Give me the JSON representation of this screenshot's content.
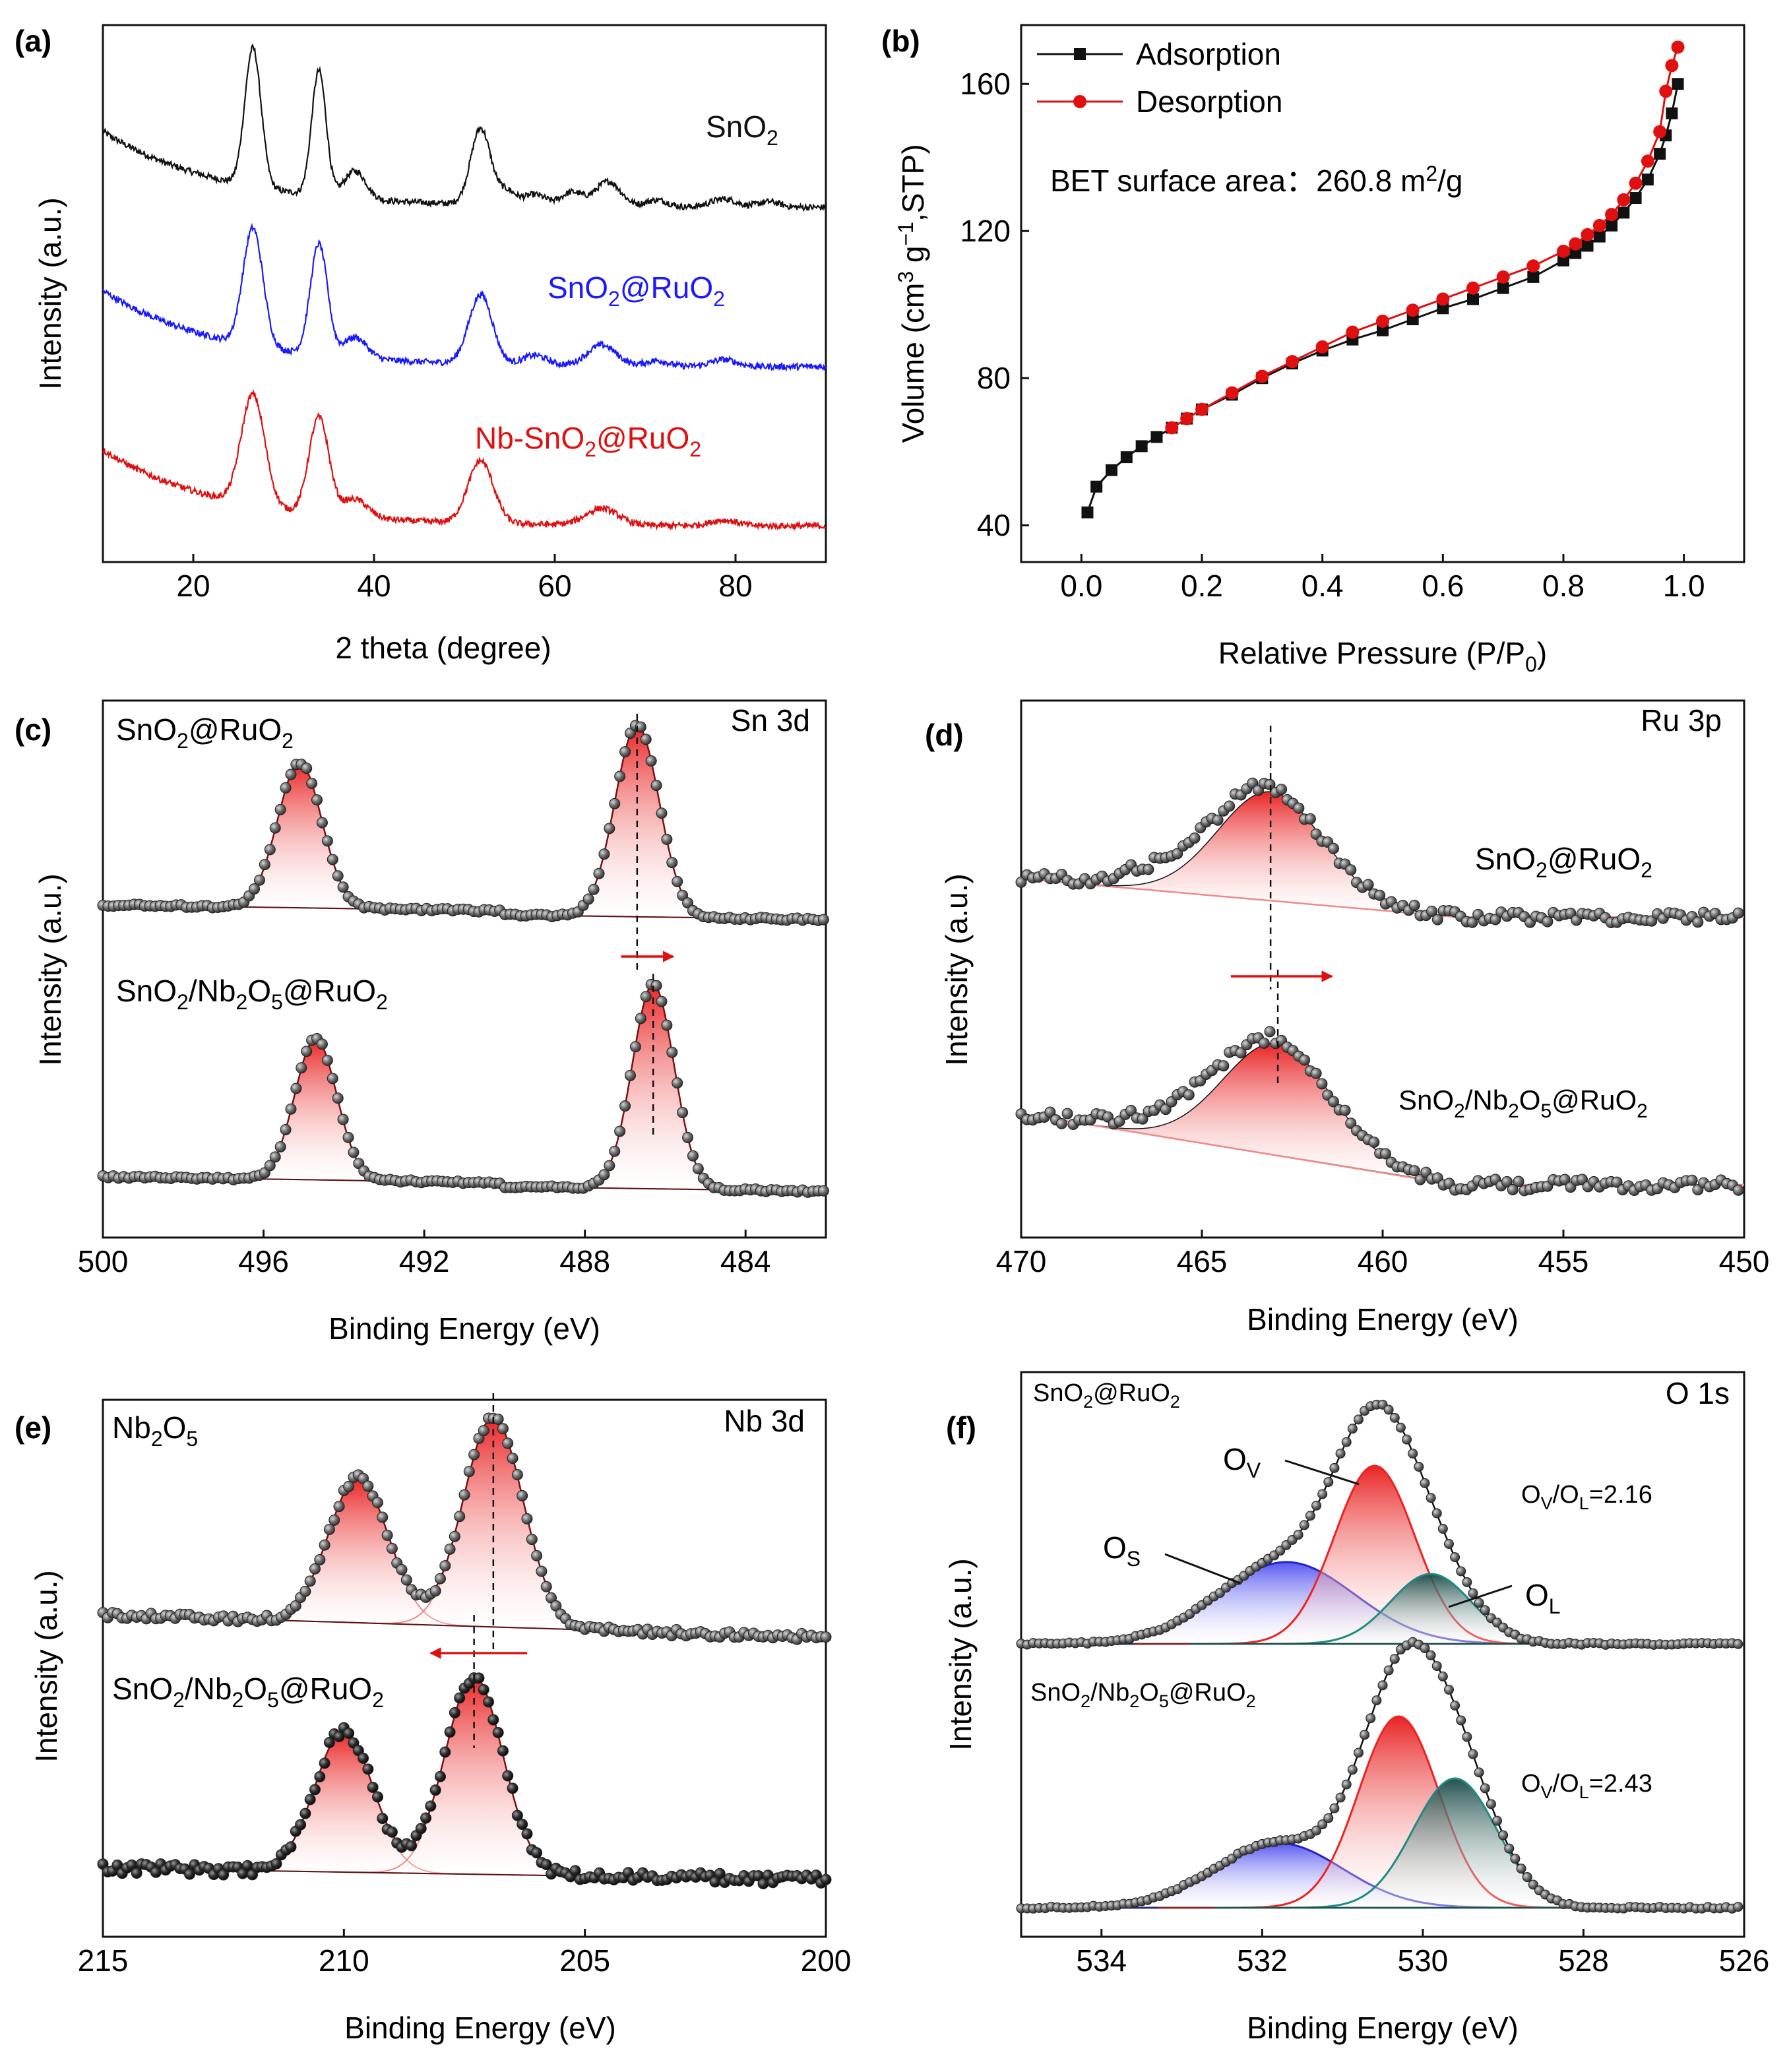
{
  "colors": {
    "black": "#111111",
    "blue": "#1a1aff",
    "red": "#e01010",
    "dark_red": "#7a1010",
    "pink": "#ee8a8a",
    "teal": "#1e8a82",
    "navy": "#2222cc",
    "marker_gray": "#555555"
  },
  "chart_data": [
    {
      "id": "a",
      "type": "line",
      "panel_label": "(a)",
      "xlabel": "2 theta (degree)",
      "ylabel": "Intensity (a.u.)",
      "xlim": [
        10,
        90
      ],
      "xticks": [
        "20",
        "40",
        "60",
        "80"
      ],
      "series": [
        {
          "name": "SnO₂",
          "label_main": "SnO",
          "label_sub": "2",
          "color": "#111111",
          "offset": 2.3,
          "peaks": [
            [
              26.6,
              1.0,
              0.9
            ],
            [
              33.9,
              0.9,
              0.8
            ],
            [
              37.9,
              0.2,
              1.2
            ],
            [
              51.8,
              0.55,
              1.1
            ],
            [
              54.7,
              0.1,
              1.0
            ],
            [
              57.8,
              0.08,
              1.2
            ],
            [
              61.9,
              0.1,
              1.2
            ],
            [
              65.9,
              0.18,
              1.4
            ],
            [
              71.3,
              0.05,
              1.2
            ],
            [
              78.7,
              0.06,
              1.4
            ],
            [
              83.7,
              0.04,
              1.2
            ]
          ]
        },
        {
          "name": "SnO₂@RuO₂",
          "label_main": "SnO2@RuO2",
          "color": "#1a1aff",
          "offset": 1.15,
          "peaks": [
            [
              26.6,
              0.85,
              1.1
            ],
            [
              33.9,
              0.8,
              0.95
            ],
            [
              37.9,
              0.15,
              1.3
            ],
            [
              51.8,
              0.5,
              1.3
            ],
            [
              57.8,
              0.07,
              1.3
            ],
            [
              65.2,
              0.15,
              1.6
            ],
            [
              71.3,
              0.04,
              1.2
            ],
            [
              78.7,
              0.05,
              1.4
            ]
          ]
        },
        {
          "name": "Nb-SnO₂@RuO₂",
          "label_main": "Nb-SnO2@RuO2",
          "color": "#e01010",
          "offset": 0.0,
          "peaks": [
            [
              26.6,
              0.8,
              1.3
            ],
            [
              33.9,
              0.7,
              1.1
            ],
            [
              37.9,
              0.13,
              1.4
            ],
            [
              51.8,
              0.45,
              1.4
            ],
            [
              65.2,
              0.12,
              1.8
            ],
            [
              78.7,
              0.04,
              1.5
            ]
          ]
        }
      ]
    },
    {
      "id": "b",
      "type": "line",
      "panel_label": "(b)",
      "xlabel": "Relative Pressure (P/P",
      "xlabel_sub": "0",
      "xlabel_close": ")",
      "ylabel": "Volume (cm",
      "ylabel_sup1": "3",
      "ylabel_mid": " g",
      "ylabel_sup2": "−1",
      "ylabel_end": ",STP)",
      "xlim": [
        -0.1,
        1.1
      ],
      "ylim": [
        30,
        176
      ],
      "xticks": [
        "0.0",
        "0.2",
        "0.4",
        "0.6",
        "0.8",
        "1.0"
      ],
      "xtick_values": [
        0.0,
        0.2,
        0.4,
        0.6,
        0.8,
        1.0
      ],
      "yticks": [
        "40",
        "80",
        "120",
        "160"
      ],
      "ytick_values": [
        40,
        80,
        120,
        160
      ],
      "annotation_prefix": "BET surface area：",
      "annotation_value": "260.8 m",
      "annotation_sup": "2",
      "annotation_unit": "/g",
      "series": [
        {
          "name": "Adsorption",
          "color": "#111111",
          "marker": "square",
          "x": [
            0.01,
            0.025,
            0.05,
            0.075,
            0.1,
            0.125,
            0.15,
            0.175,
            0.2,
            0.25,
            0.3,
            0.35,
            0.4,
            0.45,
            0.5,
            0.55,
            0.6,
            0.65,
            0.7,
            0.75,
            0.8,
            0.82,
            0.84,
            0.86,
            0.88,
            0.9,
            0.92,
            0.94,
            0.96,
            0.97,
            0.98,
            0.99
          ],
          "y": [
            43.5,
            50.5,
            55,
            58.5,
            61.5,
            64,
            66.5,
            69,
            71.5,
            75.5,
            80,
            84,
            87.5,
            90.5,
            93,
            96,
            99,
            101.5,
            104.5,
            107.5,
            112,
            114,
            116,
            118.5,
            121.5,
            125,
            129,
            134,
            141,
            146,
            152,
            160
          ]
        },
        {
          "name": "Desorption",
          "color": "#e01010",
          "marker": "circle",
          "x": [
            0.99,
            0.98,
            0.97,
            0.96,
            0.94,
            0.92,
            0.9,
            0.88,
            0.86,
            0.84,
            0.82,
            0.8,
            0.75,
            0.7,
            0.65,
            0.6,
            0.55,
            0.5,
            0.45,
            0.4,
            0.35,
            0.3,
            0.25,
            0.2,
            0.175,
            0.15
          ],
          "y": [
            170,
            165,
            158,
            147,
            139,
            133,
            128.5,
            124.5,
            121.5,
            119,
            116.5,
            114.5,
            110.5,
            107.5,
            104.5,
            101.5,
            98.5,
            95.5,
            92.5,
            88.5,
            84.5,
            80.5,
            76,
            71.5,
            69,
            66.5
          ]
        }
      ]
    },
    {
      "id": "c",
      "type": "line",
      "panel_label": "(c)",
      "corner_label": "Sn 3d",
      "xlabel": "Binding Energy (eV)",
      "ylabel": "Intensity (a.u.)",
      "xlim": [
        500,
        482
      ],
      "xticks": [
        "500",
        "496",
        "492",
        "488",
        "484"
      ],
      "xtick_values": [
        500,
        496,
        492,
        488,
        484
      ],
      "top_label": "SnO2@RuO2",
      "bottom_label": "SnO2/Nb2O5@RuO2",
      "peak_positions_eV": [
        486.7,
        486.3
      ]
    },
    {
      "id": "d",
      "type": "line",
      "panel_label": "(d)",
      "corner_label": "Ru 3p",
      "xlabel": "Binding Energy (eV)",
      "ylabel": "Intensity (a.u.)",
      "xlim": [
        470,
        450
      ],
      "xticks": [
        "470",
        "465",
        "460",
        "455",
        "450"
      ],
      "xtick_values": [
        470,
        465,
        460,
        455,
        450
      ],
      "top_label": "SnO2@RuO2",
      "bottom_label": "SnO2/Nb2O5@RuO2",
      "peak_positions_eV": [
        463.1,
        462.9
      ]
    },
    {
      "id": "e",
      "type": "line",
      "panel_label": "(e)",
      "corner_label": "Nb 3d",
      "xlabel": "Binding Energy (eV)",
      "ylabel": "Intensity (a.u.)",
      "xlim": [
        215,
        200
      ],
      "xticks": [
        "215",
        "210",
        "205",
        "200"
      ],
      "xtick_values": [
        215,
        210,
        205,
        200
      ],
      "top_label": "Nb2O5",
      "bottom_label": "SnO2/Nb2O5@RuO2",
      "peak_positions_eV": [
        206.9,
        207.3
      ]
    },
    {
      "id": "f",
      "type": "line",
      "panel_label": "(f)",
      "corner_label": "O 1s",
      "xlabel": "Binding Energy (eV)",
      "ylabel": "Intensity (a.u.)",
      "xlim": [
        535,
        526
      ],
      "xticks": [
        "534",
        "532",
        "530",
        "528",
        "526"
      ],
      "xtick_values": [
        534,
        532,
        530,
        528,
        526
      ],
      "top_label": "SnO2@RuO2",
      "bottom_label": "SnO2/Nb2O5@RuO2",
      "ratio_top": "=2.16",
      "ratio_bottom": "=2.43",
      "ratio_sym_O": "O",
      "ratio_sub_V": "V",
      "ratio_sub_L": "L",
      "ratio_slash": "/",
      "component_labels": {
        "os": "S",
        "ov": "V",
        "ol": "L",
        "o": "O"
      }
    }
  ]
}
